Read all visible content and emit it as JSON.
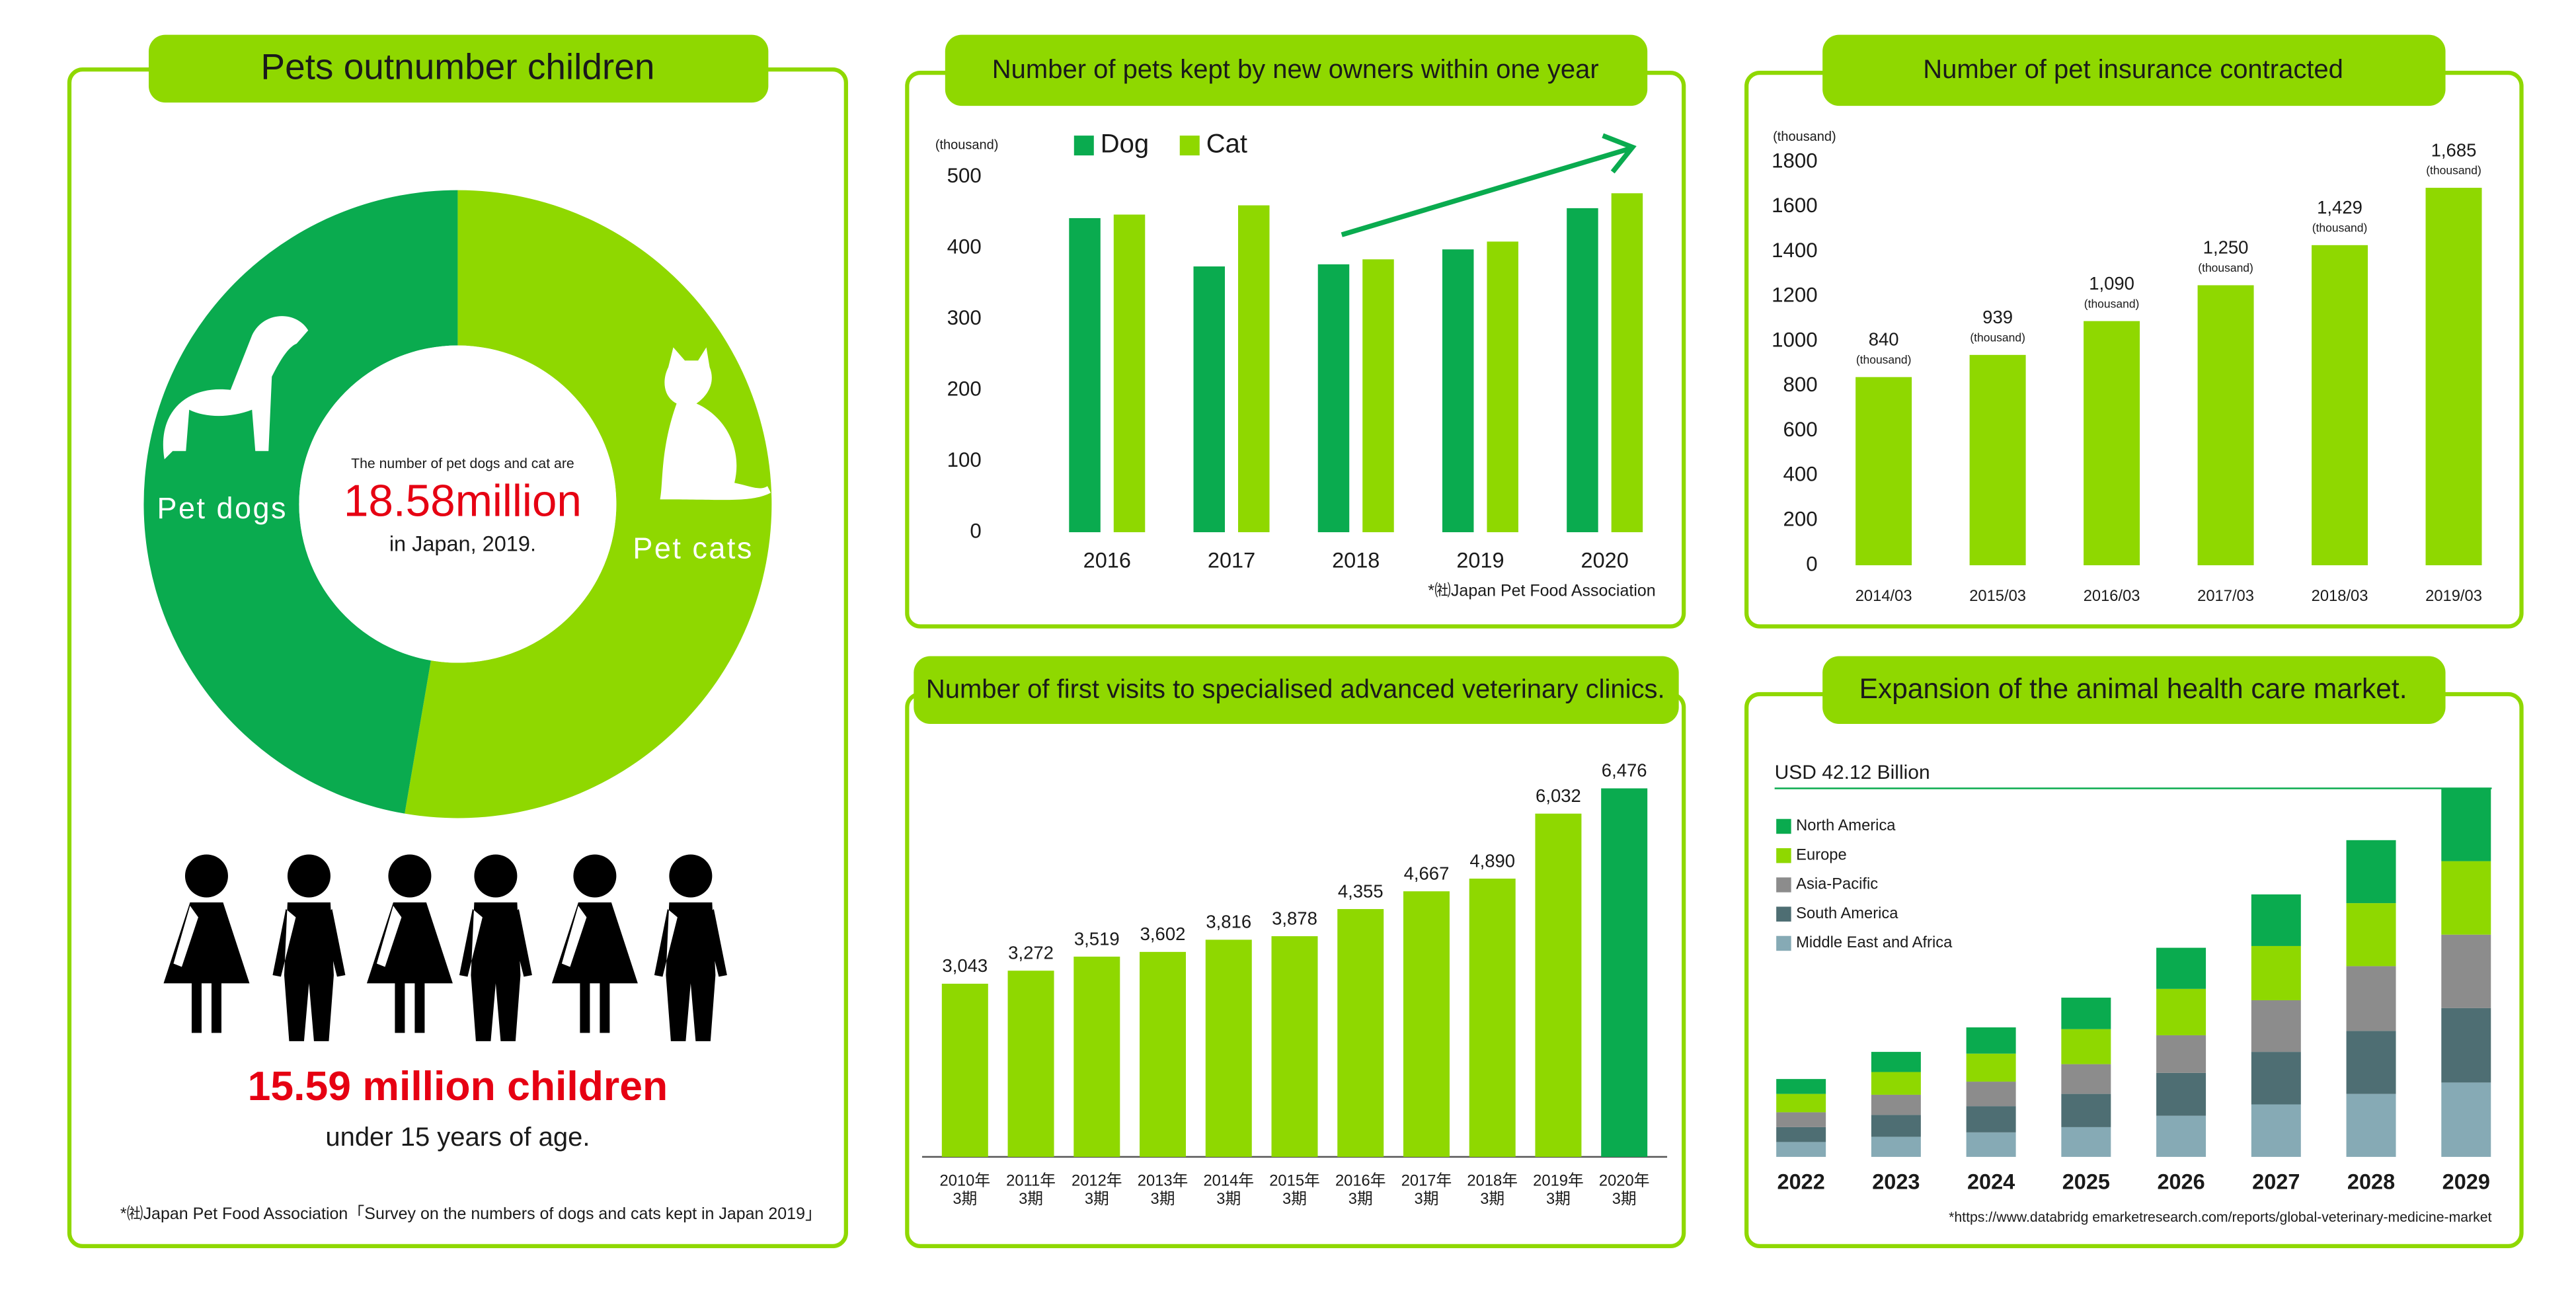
{
  "chart_data": [
    {
      "type": "pie",
      "title": "Pets outnumber children",
      "categories": [
        "Pet dogs",
        "Pet cats"
      ],
      "values": [
        47.3,
        52.7
      ],
      "colors": [
        "#0aab4f",
        "#8fd800"
      ],
      "center_text": [
        "The number of pet dogs and cat are",
        "18.58million",
        "in Japan, 2019."
      ],
      "children_text": [
        "15.59 million children",
        "under 15 years of age."
      ],
      "source": "*㈳Japan Pet Food Association「Survey on the numbers of dogs and cats kept in Japan 2019」"
    },
    {
      "type": "bar",
      "title": "Number of pets kept by new owners within one year",
      "y_unit": "(thousand)",
      "categories": [
        "2016",
        "2017",
        "2018",
        "2019",
        "2020"
      ],
      "series": [
        {
          "name": "Dog",
          "color": "#0aab4f",
          "values": [
            442,
            374,
            377,
            398,
            456
          ]
        },
        {
          "name": "Cat",
          "color": "#8fd800",
          "values": [
            447,
            460,
            384,
            409,
            477
          ]
        }
      ],
      "ylim": [
        0,
        500
      ],
      "yticks": [
        0,
        100,
        200,
        300,
        400,
        500
      ],
      "grid": false,
      "source": "*㈳Japan Pet Food Association"
    },
    {
      "type": "bar",
      "title": "Number of first visits to specialised advanced veterinary clinics.",
      "categories": [
        [
          "2010年",
          "3期"
        ],
        [
          "2011年",
          "3期"
        ],
        [
          "2012年",
          "3期"
        ],
        [
          "2013年",
          "3期"
        ],
        [
          "2014年",
          "3期"
        ],
        [
          "2015年",
          "3期"
        ],
        [
          "2016年",
          "3期"
        ],
        [
          "2017年",
          "3期"
        ],
        [
          "2018年",
          "3期"
        ],
        [
          "2019年",
          "3期"
        ],
        [
          "2020年",
          "3期"
        ]
      ],
      "values": [
        3043,
        3272,
        3519,
        3602,
        3816,
        3878,
        4355,
        4667,
        4890,
        6032,
        6476
      ],
      "value_labels": [
        "3,043",
        "3,272",
        "3,519",
        "3,602",
        "3,816",
        "3,878",
        "4,355",
        "4,667",
        "4,890",
        "6,032",
        "6,476"
      ],
      "colors": [
        "#8fd800",
        "#8fd800",
        "#8fd800",
        "#8fd800",
        "#8fd800",
        "#8fd800",
        "#8fd800",
        "#8fd800",
        "#8fd800",
        "#8fd800",
        "#0aab4f"
      ]
    },
    {
      "type": "bar",
      "title": "Number of pet insurance contracted",
      "y_unit": "(thousand)",
      "categories": [
        "2014/03",
        "2015/03",
        "2016/03",
        "2017/03",
        "2018/03",
        "2019/03"
      ],
      "values": [
        840,
        939,
        1090,
        1250,
        1429,
        1685
      ],
      "value_labels": [
        "840",
        "939",
        "1,090",
        "1,250",
        "1,429",
        "1,685"
      ],
      "value_unit": "(thousand)",
      "color": "#8fd800",
      "ylim": [
        0,
        1800
      ],
      "yticks": [
        0,
        200,
        400,
        600,
        800,
        1000,
        1200,
        1400,
        1600,
        1800
      ],
      "grid": false
    },
    {
      "type": "stacked_bar",
      "title": "Expansion of the animal health care market.",
      "total_label": "USD 42.12 Billion",
      "categories": [
        "2022",
        "2023",
        "2024",
        "2025",
        "2026",
        "2027",
        "2028",
        "2029"
      ],
      "series": [
        {
          "name": "North America",
          "color": "#0aab4f",
          "values": [
            1.7,
            2.3,
            3.0,
            3.6,
            4.7,
            5.9,
            7.2,
            8.32
          ]
        },
        {
          "name": "Europe",
          "color": "#8fd800",
          "values": [
            2.1,
            2.6,
            3.2,
            4.0,
            5.3,
            6.2,
            7.2,
            8.4
          ]
        },
        {
          "name": "Asia-Pacific",
          "color": "#8c8c8c",
          "values": [
            1.7,
            2.3,
            2.8,
            3.4,
            4.3,
            5.9,
            7.4,
            8.4
          ]
        },
        {
          "name": "South America",
          "color": "#4e6e73",
          "values": [
            1.7,
            2.5,
            3.0,
            3.8,
            4.9,
            6.0,
            7.2,
            8.5
          ]
        },
        {
          "name": "Middle East and Africa",
          "color": "#86aab5",
          "values": [
            1.7,
            2.3,
            2.8,
            3.4,
            4.7,
            6.0,
            7.2,
            8.5
          ]
        }
      ],
      "source": "*https://www.databridg emarketresearch.com/reports/global-veterinary-medicine-market"
    }
  ]
}
